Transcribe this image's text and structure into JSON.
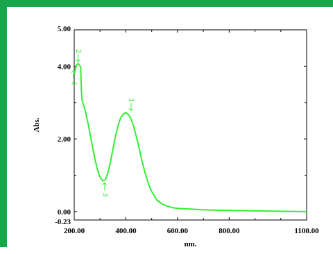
{
  "colors": {
    "border": "#19a54a",
    "curve": "#33ee33",
    "axis": "#000000",
    "background": "#ffffff"
  },
  "chart_data": {
    "type": "line",
    "xlabel": "nm.",
    "ylabel": "Abs.",
    "xlim": [
      200,
      1100
    ],
    "ylim": [
      -0.23,
      5.0
    ],
    "grid": false,
    "x_ticks": [
      {
        "value": 200,
        "label": "200.00"
      },
      {
        "value": 400,
        "label": "400.00"
      },
      {
        "value": 600,
        "label": "600.00"
      },
      {
        "value": 800,
        "label": "800.00"
      },
      {
        "value": 1100,
        "label": "1100.00"
      }
    ],
    "y_ticks": [
      {
        "value": 5.0,
        "label": "5.00"
      },
      {
        "value": 4.0,
        "label": "4.00"
      },
      {
        "value": 2.0,
        "label": "2.00"
      },
      {
        "value": 0.0,
        "label": "0.00"
      },
      {
        "value": -0.23,
        "label": "-0.23"
      }
    ],
    "series": [
      {
        "x": [
          200,
          205,
          210,
          215,
          220,
          225,
          228,
          231,
          235,
          240,
          250,
          260,
          270,
          280,
          290,
          300,
          310,
          320,
          330,
          340,
          350,
          360,
          370,
          380,
          390,
          400,
          410,
          420,
          430,
          440,
          450,
          460,
          470,
          480,
          490,
          500,
          520,
          540,
          560,
          580,
          600,
          650,
          700,
          750,
          800,
          900,
          1000,
          1100
        ],
        "y": [
          3.78,
          3.95,
          4.05,
          4.07,
          4.03,
          3.98,
          3.3,
          3.05,
          2.95,
          2.85,
          2.55,
          2.2,
          1.8,
          1.45,
          1.15,
          0.95,
          0.85,
          0.87,
          1.05,
          1.35,
          1.72,
          2.08,
          2.38,
          2.58,
          2.68,
          2.72,
          2.67,
          2.55,
          2.35,
          2.08,
          1.78,
          1.47,
          1.18,
          0.93,
          0.72,
          0.55,
          0.32,
          0.21,
          0.15,
          0.11,
          0.09,
          0.07,
          0.05,
          0.04,
          0.035,
          0.02,
          0.01,
          0.0
        ]
      }
    ],
    "annotations": [
      {
        "label": "1",
        "x": 420,
        "y": 2.72
      },
      {
        "label": "2",
        "x": 215,
        "y": 4.07
      },
      {
        "label": "3",
        "x": 318,
        "y": 0.85
      },
      {
        "label": "4",
        "x": 203,
        "y": 3.88
      }
    ]
  }
}
